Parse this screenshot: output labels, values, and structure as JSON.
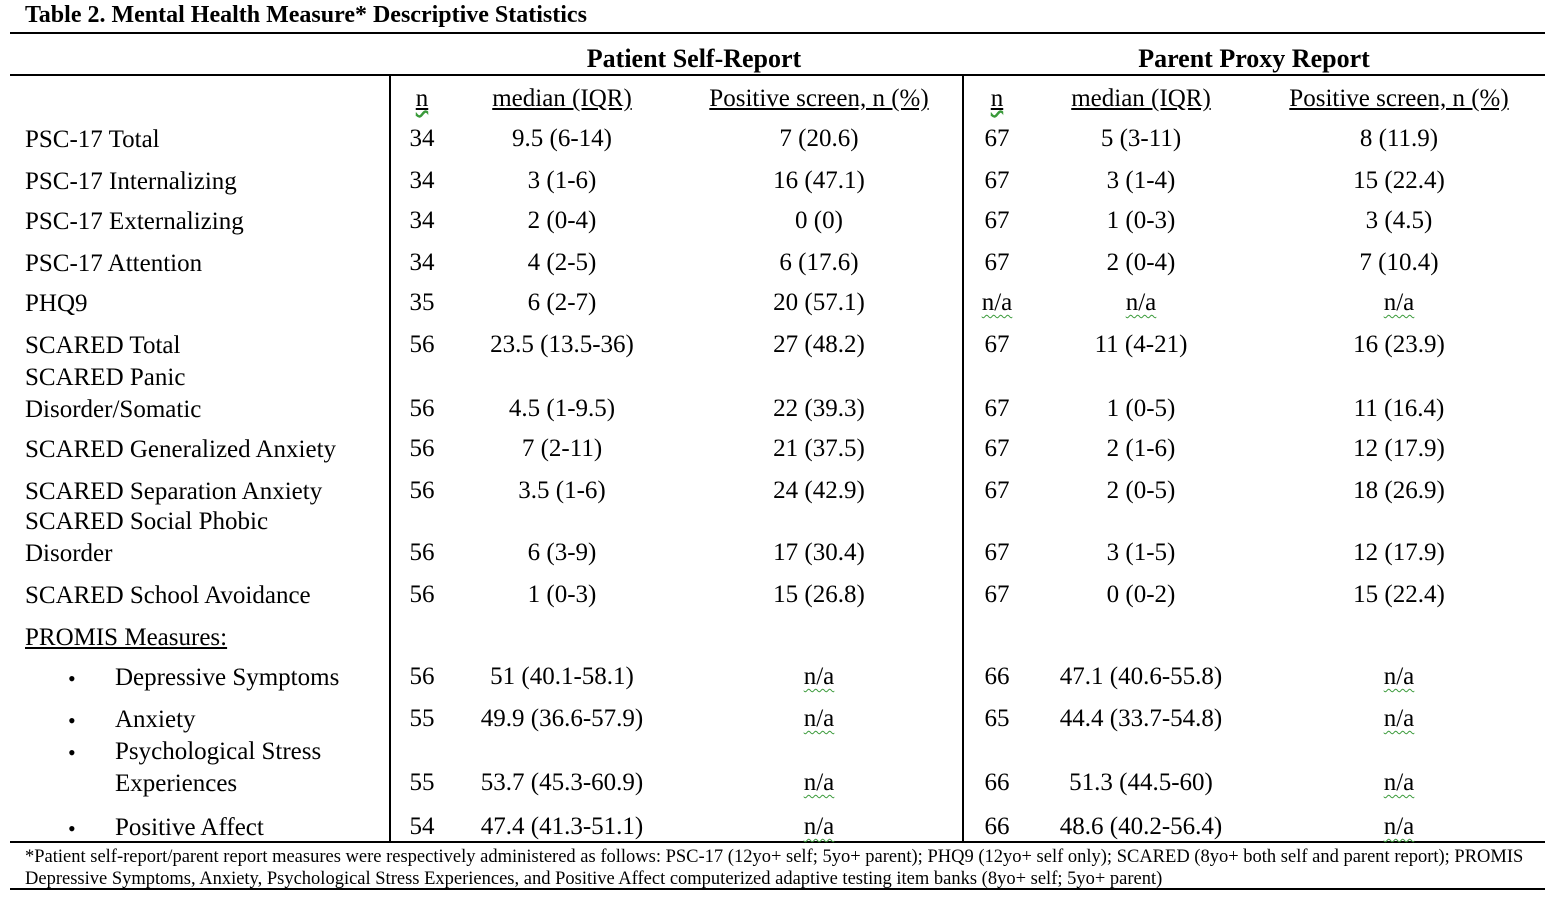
{
  "title": "Table 2. Mental Health Measure* Descriptive Statistics",
  "groups": {
    "self": "Patient Self-Report",
    "proxy": "Parent Proxy Report"
  },
  "columns": {
    "n": "n",
    "median": "median (IQR)",
    "positive": "Positive screen, n (%)"
  },
  "rows": [
    {
      "label": [
        "PSC-17 Total"
      ],
      "self_n": "34",
      "self_median": "9.5 (6-14)",
      "self_pos": "7 (20.6)",
      "proxy_n": "67",
      "proxy_median": "5 (3-11)",
      "proxy_pos": "8 (11.9)"
    },
    {
      "label": [
        "PSC-17 Internalizing"
      ],
      "self_n": "34",
      "self_median": "3 (1-6)",
      "self_pos": "16 (47.1)",
      "proxy_n": "67",
      "proxy_median": "3 (1-4)",
      "proxy_pos": "15 (22.4)"
    },
    {
      "label": [
        "PSC-17 Externalizing"
      ],
      "self_n": "34",
      "self_median": "2 (0-4)",
      "self_pos": "0 (0)",
      "proxy_n": "67",
      "proxy_median": "1 (0-3)",
      "proxy_pos": "3 (4.5)"
    },
    {
      "label": [
        "PSC-17 Attention"
      ],
      "self_n": "34",
      "self_median": "4 (2-5)",
      "self_pos": "6 (17.6)",
      "proxy_n": "67",
      "proxy_median": "2 (0-4)",
      "proxy_pos": "7 (10.4)"
    },
    {
      "label": [
        "PHQ9"
      ],
      "self_n": "35",
      "self_median": "6 (2-7)",
      "self_pos": "20 (57.1)",
      "proxy_n": "n/a",
      "proxy_median": "n/a",
      "proxy_pos": "n/a"
    },
    {
      "label": [
        "SCARED Total"
      ],
      "self_n": "56",
      "self_median": "23.5 (13.5-36)",
      "self_pos": "27 (48.2)",
      "proxy_n": "67",
      "proxy_median": "11 (4-21)",
      "proxy_pos": "16 (23.9)"
    },
    {
      "label": [
        "SCARED Panic",
        "Disorder/Somatic"
      ],
      "self_n": "56",
      "self_median": "4.5 (1-9.5)",
      "self_pos": "22 (39.3)",
      "proxy_n": "67",
      "proxy_median": "1 (0-5)",
      "proxy_pos": "11 (16.4)"
    },
    {
      "label": [
        "SCARED Generalized Anxiety"
      ],
      "self_n": "56",
      "self_median": "7 (2-11)",
      "self_pos": "21 (37.5)",
      "proxy_n": "67",
      "proxy_median": "2 (1-6)",
      "proxy_pos": "12 (17.9)"
    },
    {
      "label": [
        "SCARED Separation Anxiety"
      ],
      "self_n": "56",
      "self_median": "3.5 (1-6)",
      "self_pos": "24 (42.9)",
      "proxy_n": "67",
      "proxy_median": "2 (0-5)",
      "proxy_pos": "18 (26.9)"
    },
    {
      "label": [
        "SCARED Social Phobic",
        "Disorder"
      ],
      "self_n": "56",
      "self_median": "6 (3-9)",
      "self_pos": "17 (30.4)",
      "proxy_n": "67",
      "proxy_median": "3 (1-5)",
      "proxy_pos": "12 (17.9)"
    },
    {
      "label": [
        "SCARED School Avoidance"
      ],
      "self_n": "56",
      "self_median": "1 (0-3)",
      "self_pos": "15 (26.8)",
      "proxy_n": "67",
      "proxy_median": "0 (0-2)",
      "proxy_pos": "15 (22.4)"
    }
  ],
  "promis_heading": "PROMIS Measures:",
  "bullet_glyph": "•",
  "promis_rows": [
    {
      "label": [
        "Depressive Symptoms"
      ],
      "self_n": "56",
      "self_median": "51 (40.1-58.1)",
      "self_pos": "n/a",
      "proxy_n": "66",
      "proxy_median": "47.1 (40.6-55.8)",
      "proxy_pos": "n/a"
    },
    {
      "label": [
        "Anxiety"
      ],
      "self_n": "55",
      "self_median": "49.9 (36.6-57.9)",
      "self_pos": "n/a",
      "proxy_n": "65",
      "proxy_median": "44.4 (33.7-54.8)",
      "proxy_pos": "n/a"
    },
    {
      "label": [
        "Psychological Stress",
        "Experiences"
      ],
      "self_n": "55",
      "self_median": "53.7 (45.3-60.9)",
      "self_pos": "n/a",
      "proxy_n": "66",
      "proxy_median": "51.3 (44.5-60)",
      "proxy_pos": "n/a"
    },
    {
      "label": [
        "Positive Affect"
      ],
      "self_n": "54",
      "self_median": "47.4 (41.3-51.1)",
      "self_pos": "n/a",
      "proxy_n": "66",
      "proxy_median": "48.6 (40.2-56.4)",
      "proxy_pos": "n/a"
    }
  ],
  "footnote": "*Patient self-report/parent report measures were respectively administered as follows: PSC-17 (12yo+ self; 5yo+ parent); PHQ9 (12yo+ self only); SCARED (8yo+ both self and parent report); PROMIS Depressive Symptoms, Anxiety, Psychological Stress Experiences, and Positive Affect computerized adaptive testing item banks  (8yo+ self; 5yo+ parent)"
}
